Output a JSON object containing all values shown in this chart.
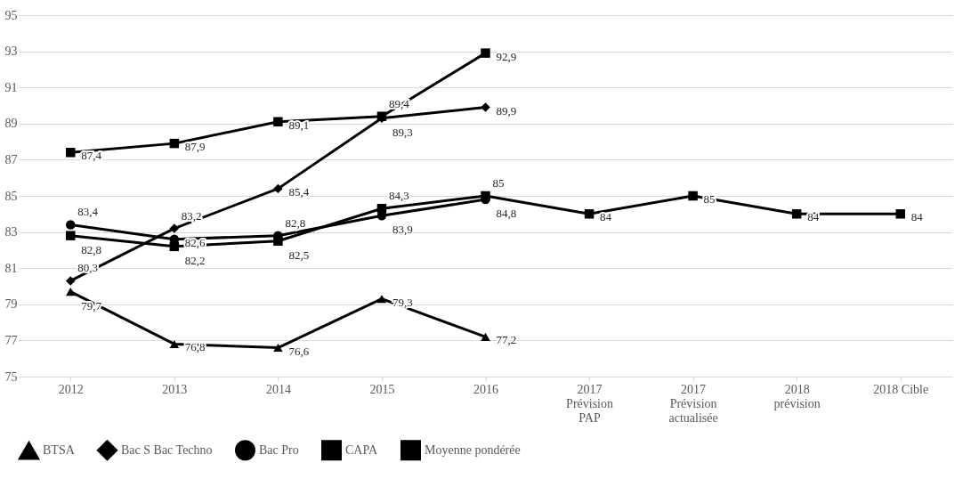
{
  "chart_data": {
    "type": "line",
    "categories": [
      "2012",
      "2013",
      "2014",
      "2015",
      "2016",
      "2017 Prévision PAP",
      "2017 Prévision actualisée",
      "2018 prévision",
      "2018 Cible"
    ],
    "ylim": [
      75,
      95
    ],
    "yticks": [
      75,
      77,
      79,
      81,
      83,
      85,
      87,
      89,
      91,
      93,
      95
    ],
    "grid": "y",
    "legend": "bottom",
    "series": [
      {
        "name": "BTSA",
        "color": "#000000",
        "marker": "triangle",
        "values": [
          79.7,
          76.8,
          76.6,
          79.3,
          77.2,
          null,
          null,
          null,
          null
        ],
        "value_labels": [
          "79,7",
          "76,8",
          "76,6",
          "79,3",
          "77,2",
          null,
          null,
          null,
          null
        ]
      },
      {
        "name": "Bac S Bac Techno",
        "color": "#000000",
        "marker": "diamond",
        "values": [
          80.3,
          83.2,
          85.4,
          89.3,
          89.9,
          null,
          null,
          null,
          null
        ],
        "value_labels": [
          "80,3",
          "83,2",
          "85,4",
          "89,3",
          "89,9",
          null,
          null,
          null,
          null
        ]
      },
      {
        "name": "Bac Pro",
        "color": "#000000",
        "marker": "circle",
        "values": [
          83.4,
          82.6,
          82.8,
          83.9,
          84.8,
          null,
          null,
          null,
          null
        ],
        "value_labels": [
          "83,4",
          "82,6",
          "82,8",
          "83,9",
          "84,8",
          null,
          null,
          null,
          null
        ]
      },
      {
        "name": "CAPA",
        "color": "#000000",
        "marker": "square",
        "values": [
          87.4,
          87.9,
          89.1,
          89.4,
          92.9,
          null,
          null,
          null,
          null
        ],
        "value_labels": [
          "87,4",
          "87,9",
          "89,1",
          "89,4",
          "92,9",
          null,
          null,
          null,
          null
        ]
      },
      {
        "name": "Moyenne pondérée",
        "color": "#000000",
        "marker": "square",
        "values": [
          82.8,
          82.2,
          82.5,
          84.3,
          85,
          84,
          85,
          84,
          84
        ],
        "value_labels": [
          "82,8",
          "82,2",
          "82,5",
          "84,3",
          "85",
          "84",
          "85",
          "84",
          "84"
        ]
      }
    ]
  }
}
